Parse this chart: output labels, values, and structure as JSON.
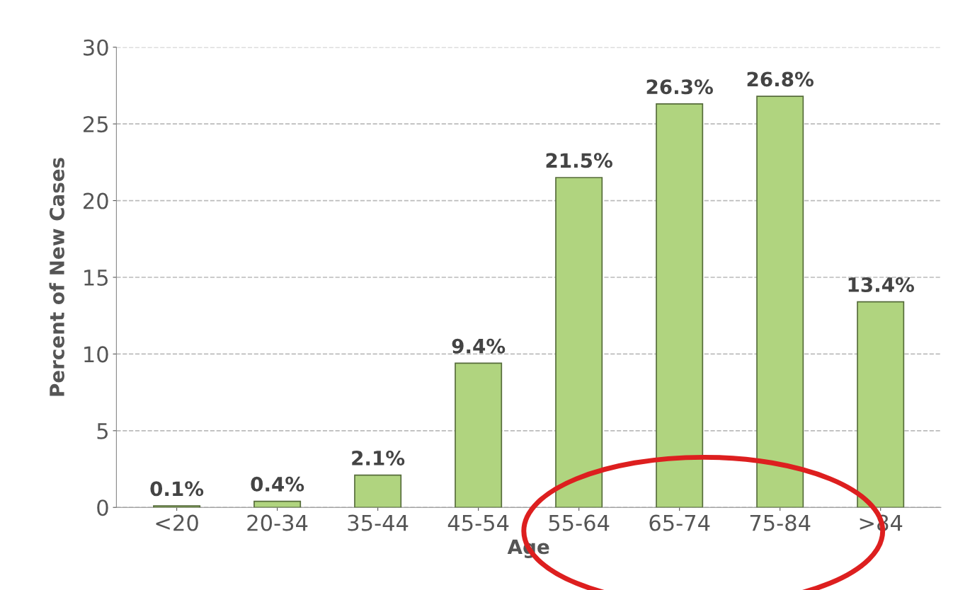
{
  "chart_data": {
    "type": "bar",
    "xlabel": "Age",
    "ylabel": "Percent of New Cases",
    "categories": [
      "<20",
      "20-34",
      "35-44",
      "45-54",
      "55-64",
      "65-74",
      "75-84",
      ">84"
    ],
    "values": [
      0.1,
      0.4,
      2.1,
      9.4,
      21.5,
      26.3,
      26.8,
      13.4
    ],
    "value_labels": [
      "0.1%",
      "0.4%",
      "2.1%",
      "9.4%",
      "21.5%",
      "26.3%",
      "26.8%",
      "13.4%"
    ],
    "color": "#b0d47f",
    "ylim": [
      0,
      30
    ],
    "yticks": [
      0,
      5,
      10,
      15,
      20,
      25,
      30
    ],
    "grid": "y"
  }
}
